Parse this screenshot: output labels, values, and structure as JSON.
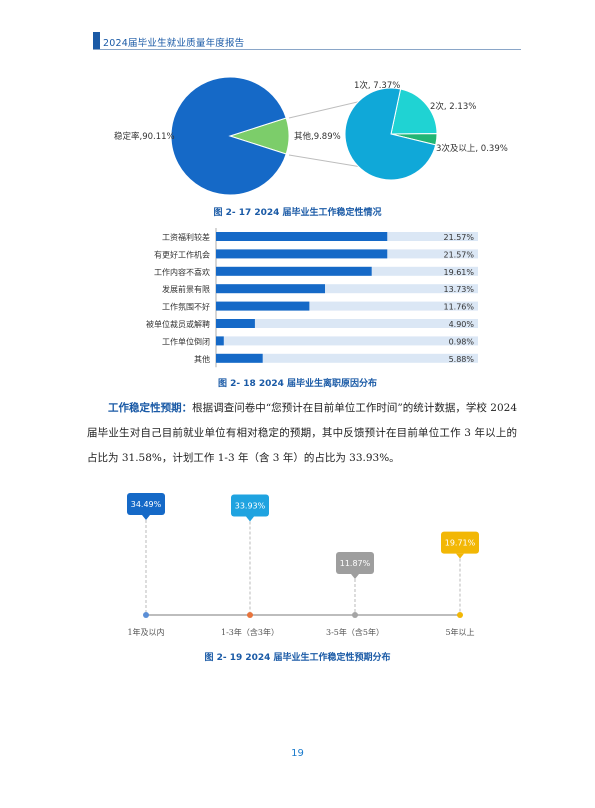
{
  "header": {
    "title": "2024届毕业生就业质量年度报告"
  },
  "fig17": {
    "caption": "图 2- 17  2024 届毕业生工作稳定性情况",
    "main_pie": [
      {
        "label": "稳定率,90.11%",
        "value": 90.11,
        "color": "#1569c7"
      },
      {
        "label": "其他,9.89%",
        "value": 9.89,
        "color": "#7ccd6a"
      }
    ],
    "sub_pie": [
      {
        "label": "1次, 7.37%",
        "value": 7.37,
        "color": "#10a8d8"
      },
      {
        "label": "2次, 2.13%",
        "value": 2.13,
        "color": "#1fd3d3"
      },
      {
        "label": "3次及以上, 0.39%",
        "value": 0.39,
        "color": "#22b573"
      }
    ]
  },
  "fig18": {
    "caption": "图 2- 18  2024 届毕业生离职原因分布",
    "chart_data": {
      "type": "bar",
      "orientation": "horizontal",
      "categories": [
        "工资福利较差",
        "有更好工作机会",
        "工作内容不喜欢",
        "发展前景有限",
        "工作氛围不好",
        "被单位裁员或解聘",
        "工作单位倒闭",
        "其他"
      ],
      "values": [
        21.57,
        21.57,
        19.61,
        13.73,
        11.76,
        4.9,
        0.98,
        5.88
      ],
      "value_labels": [
        "21.57%",
        "21.57%",
        "19.61%",
        "13.73%",
        "11.76%",
        "4.90%",
        "0.98%",
        "5.88%"
      ],
      "xlim": [
        0,
        33
      ],
      "bar_color": "#1569c7",
      "track_color": "#dbe7f5"
    }
  },
  "paragraph": {
    "lead": "工作稳定性预期：",
    "text": "根据调查问卷中“您预计在目前单位工作时间”的统计数据，学校 2024 届毕业生对自己目前就业单位有相对稳定的预期，其中反馈预计在目前单位工作 3 年以上的占比为 31.58%，计划工作 1-3 年（含 3 年）的占比为 33.93%。"
  },
  "fig19": {
    "caption": "图 2- 19  2024 届毕业生工作稳定性预期分布",
    "chart_data": {
      "type": "timeline",
      "categories": [
        "1年及以内",
        "1-3年（含3年）",
        "3-5年（含5年）",
        "5年以上"
      ],
      "values": [
        34.49,
        33.93,
        11.87,
        19.71
      ],
      "value_labels": [
        "34.49%",
        "33.93%",
        "11.87%",
        "19.71%"
      ],
      "colors": [
        "#1569c7",
        "#1fa3e0",
        "#9e9e9e",
        "#f2b705"
      ],
      "dot_colors": [
        "#5b8fd6",
        "#e8743b",
        "#a5a5a5",
        "#f2b705"
      ]
    }
  },
  "page": {
    "number": "19"
  }
}
